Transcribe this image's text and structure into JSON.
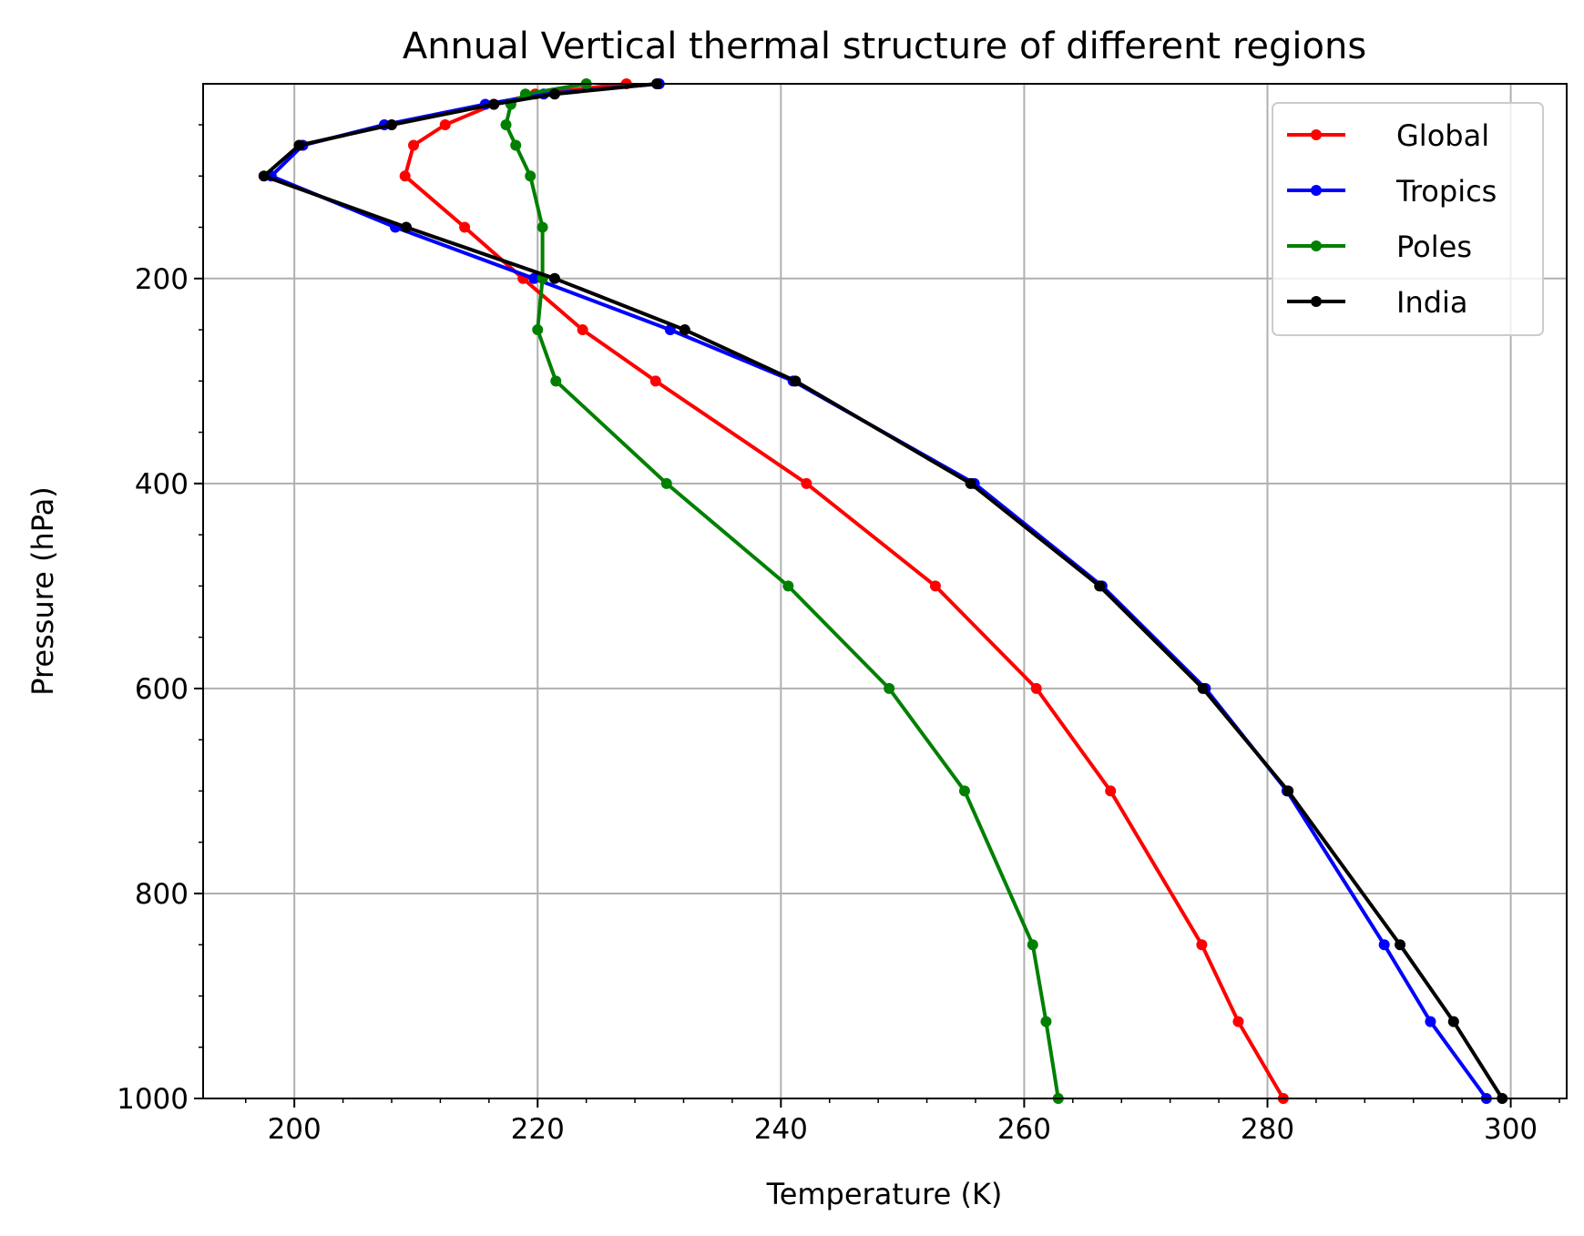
{
  "chart_data": {
    "type": "line",
    "title": "Annual Vertical thermal structure of different regions",
    "xlabel": "Temperature (K)",
    "ylabel": "Pressure (hPa)",
    "xlim": [
      192.5,
      304.6
    ],
    "ylim": [
      1000,
      10
    ],
    "y_inverted": true,
    "x_ticks": [
      200,
      220,
      240,
      260,
      280,
      300
    ],
    "y_ticks": [
      200,
      400,
      600,
      800,
      1000
    ],
    "grid": true,
    "legend_position": "top-right",
    "pressure_levels": [
      1000,
      925,
      850,
      700,
      600,
      500,
      400,
      300,
      250,
      200,
      150,
      100,
      70,
      50,
      30,
      20,
      10
    ],
    "series": [
      {
        "name": "Global",
        "color": "#ff0000",
        "values": [
          281.3,
          277.6,
          274.6,
          267.1,
          261.0,
          252.7,
          242.1,
          229.7,
          223.7,
          218.8,
          214.0,
          209.1,
          209.8,
          212.4,
          216.4,
          219.8,
          227.3
        ]
      },
      {
        "name": "Tropics",
        "color": "#0000ff",
        "values": [
          298.0,
          293.4,
          289.6,
          281.6,
          274.9,
          266.4,
          255.9,
          241.0,
          230.9,
          219.7,
          208.3,
          198.1,
          200.7,
          207.4,
          215.7,
          220.5,
          230.0
        ]
      },
      {
        "name": "Poles",
        "color": "#008000",
        "values": [
          262.8,
          261.8,
          260.7,
          255.1,
          248.9,
          240.6,
          230.6,
          221.5,
          220.0,
          220.4,
          220.4,
          219.4,
          218.2,
          217.4,
          217.8,
          219.0,
          224.0
        ]
      },
      {
        "name": "India",
        "color": "#000000",
        "values": [
          299.3,
          295.3,
          290.9,
          281.7,
          274.7,
          266.2,
          255.6,
          241.2,
          232.1,
          221.4,
          209.2,
          197.5,
          200.4,
          208.0,
          216.4,
          221.4,
          229.8
        ]
      }
    ]
  }
}
